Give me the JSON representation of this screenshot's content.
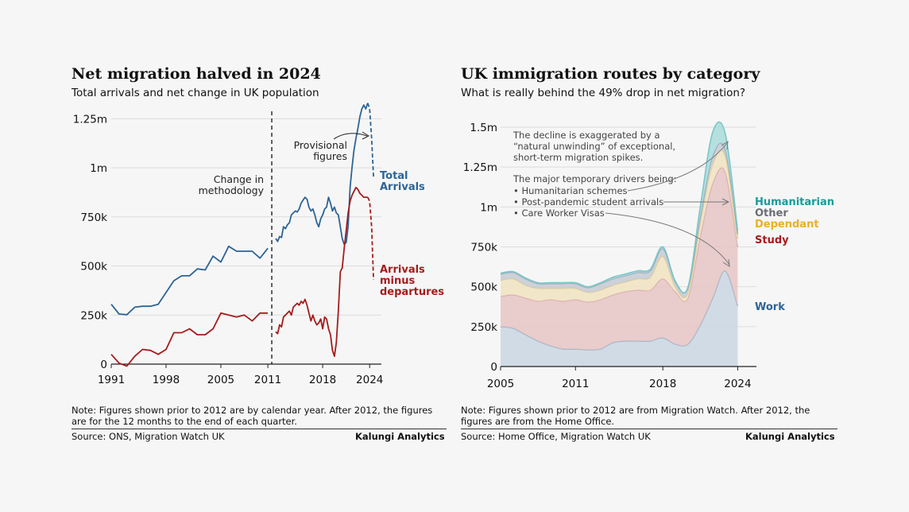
{
  "left_chart": {
    "title": "Net migration halved in 2024",
    "subtitle": "Total arrivals and net change in UK population",
    "note": "Note: Figures shown prior to 2012 are by calendar year. After 2012, the figures are for the 12 months to the end of each quarter.",
    "source": "Source: ONS, Migration Watch UK",
    "brand": "Kalungi Analytics",
    "annotations": {
      "methodology_line1": "Change in",
      "methodology_line2": "methodology",
      "provisional_line1": "Provisional",
      "provisional_line2": "figures"
    },
    "series_labels": {
      "arrivals_line1": "Total",
      "arrivals_line2": "Arrivals",
      "net_line1": "Arrivals",
      "net_line2": "minus",
      "net_line3": "departures"
    }
  },
  "right_chart": {
    "title": "UK immigration routes by category",
    "subtitle": "What is really behind the 49% drop in net migration?",
    "note": "Note: Figures shown prior to 2012 are from Migration Watch. After 2012, the figures are from the Home Office.",
    "source": "Source: Home Office, Migration Watch UK",
    "brand": "Kalungi Analytics",
    "annotations": {
      "line1": "The decline is exaggerated by a",
      "line2": "“natural unwinding” of exceptional,",
      "line3": "short-term migration spikes.",
      "line4": "The major temporary drivers being:",
      "line5": "• Humanitarian schemes",
      "line6": "• Post-pandemic student arrivals",
      "line7": "• Care Worker Visas"
    },
    "legend": {
      "humanitarian": "Humanitarian",
      "other": "Other",
      "dependant": "Dependant",
      "study": "Study",
      "work": "Work"
    }
  },
  "colors": {
    "arrivals": "#2d6496",
    "net": "#a51c1c",
    "work": "#c9d6e2",
    "study": "#e6c4c4",
    "dependant": "#f1e3c1",
    "other": "#c5cad2",
    "humanitarian": "#a9dcdc",
    "humanitarian_label": "#1a9a9a",
    "other_label": "#6a6e75",
    "dependant_label": "#e8b02a",
    "study_label": "#a51c1c",
    "work_label": "#2d6496"
  },
  "chart_data": [
    {
      "type": "line",
      "title": "Net migration halved in 2024",
      "xlabel": "",
      "ylabel": "",
      "xlim": [
        1991,
        2025.5
      ],
      "ylim": [
        0,
        1300000
      ],
      "xticks": [
        1991,
        1998,
        2005,
        2011,
        2018,
        2024
      ],
      "xtick_labels": [
        "1991",
        "1998",
        "2005",
        "2011",
        "2018",
        "2024"
      ],
      "yticks": [
        0,
        250000,
        500000,
        750000,
        1000000,
        1250000
      ],
      "ytick_labels": [
        "0",
        "250k",
        "500k",
        "750k",
        "1m",
        "1.25m"
      ],
      "methodology_break": 2011.5,
      "series": [
        {
          "name": "Total Arrivals (calendar year)",
          "x": [
            1991,
            1992,
            1993,
            1994,
            1995,
            1996,
            1997,
            1998,
            1999,
            2000,
            2001,
            2002,
            2003,
            2004,
            2005,
            2006,
            2007,
            2008,
            2009,
            2010,
            2011
          ],
          "y": [
            305000,
            255000,
            252000,
            290000,
            295000,
            295000,
            305000,
            365000,
            425000,
            450000,
            450000,
            485000,
            480000,
            550000,
            520000,
            600000,
            575000,
            575000,
            575000,
            540000,
            590000
          ]
        },
        {
          "name": "Total Arrivals (quarterly, 12-month)",
          "x": [
            2012,
            2012.25,
            2012.5,
            2012.75,
            2013,
            2013.25,
            2013.5,
            2013.75,
            2014,
            2014.25,
            2014.5,
            2014.75,
            2015,
            2015.25,
            2015.5,
            2015.75,
            2016,
            2016.25,
            2016.5,
            2016.75,
            2017,
            2017.25,
            2017.5,
            2017.75,
            2018,
            2018.25,
            2018.5,
            2018.75,
            2019,
            2019.25,
            2019.5,
            2019.75,
            2020,
            2020.25,
            2020.5,
            2020.75,
            2021,
            2021.25,
            2021.5,
            2021.75,
            2022,
            2022.25,
            2022.5,
            2022.75,
            2023,
            2023.25,
            2023.5,
            2023.75
          ],
          "y": [
            640000,
            625000,
            650000,
            645000,
            700000,
            690000,
            710000,
            720000,
            760000,
            770000,
            780000,
            775000,
            790000,
            820000,
            835000,
            850000,
            840000,
            800000,
            780000,
            790000,
            760000,
            720000,
            700000,
            740000,
            760000,
            790000,
            800000,
            850000,
            820000,
            780000,
            800000,
            770000,
            760000,
            700000,
            640000,
            610000,
            620000,
            700000,
            900000,
            1000000,
            1090000,
            1150000,
            1200000,
            1260000,
            1300000,
            1320000,
            1300000,
            1330000
          ]
        },
        {
          "name": "Total Arrivals (provisional)",
          "provisional": true,
          "x": [
            2023.75,
            2024,
            2024.25,
            2024.5
          ],
          "y": [
            1330000,
            1300000,
            1150000,
            950000
          ]
        },
        {
          "name": "Arrivals minus departures (calendar year)",
          "x": [
            1991,
            1992,
            1993,
            1994,
            1995,
            1996,
            1997,
            1998,
            1999,
            2000,
            2001,
            2002,
            2003,
            2004,
            2005,
            2006,
            2007,
            2008,
            2009,
            2010,
            2011
          ],
          "y": [
            50000,
            5000,
            -10000,
            40000,
            75000,
            70000,
            50000,
            75000,
            160000,
            160000,
            180000,
            150000,
            150000,
            180000,
            260000,
            250000,
            240000,
            250000,
            220000,
            260000,
            260000
          ]
        },
        {
          "name": "Arrivals minus departures (quarterly, 12-month)",
          "x": [
            2012,
            2012.25,
            2012.5,
            2012.75,
            2013,
            2013.25,
            2013.5,
            2013.75,
            2014,
            2014.25,
            2014.5,
            2014.75,
            2015,
            2015.25,
            2015.5,
            2015.75,
            2016,
            2016.25,
            2016.5,
            2016.75,
            2017,
            2017.25,
            2017.5,
            2017.75,
            2018,
            2018.25,
            2018.5,
            2018.75,
            2019,
            2019.25,
            2019.5,
            2019.75,
            2020,
            2020.25,
            2020.5,
            2020.75,
            2021,
            2021.25,
            2021.5,
            2021.75,
            2022,
            2022.25,
            2022.5,
            2022.75,
            2023,
            2023.25,
            2023.5,
            2023.75
          ],
          "y": [
            165000,
            155000,
            200000,
            190000,
            240000,
            250000,
            260000,
            270000,
            250000,
            290000,
            300000,
            310000,
            300000,
            320000,
            310000,
            330000,
            300000,
            260000,
            220000,
            250000,
            220000,
            200000,
            210000,
            230000,
            180000,
            240000,
            230000,
            180000,
            150000,
            70000,
            40000,
            110000,
            270000,
            470000,
            490000,
            590000,
            680000,
            770000,
            830000,
            860000,
            880000,
            900000,
            890000,
            870000,
            860000,
            850000,
            850000,
            850000
          ]
        },
        {
          "name": "Arrivals minus departures (provisional)",
          "provisional": true,
          "x": [
            2023.75,
            2024,
            2024.25,
            2024.5
          ],
          "y": [
            850000,
            830000,
            700000,
            430000
          ]
        }
      ]
    },
    {
      "type": "area",
      "stacked": true,
      "title": "UK immigration routes by category",
      "xlabel": "",
      "ylabel": "",
      "xlim": [
        2005,
        2025.5
      ],
      "ylim": [
        0,
        1500000
      ],
      "xticks": [
        2005,
        2011,
        2018,
        2024
      ],
      "xtick_labels": [
        "2005",
        "2011",
        "2018",
        "2024"
      ],
      "yticks": [
        0,
        250000,
        500000,
        750000,
        1000000,
        1250000,
        1500000
      ],
      "ytick_labels": [
        "0",
        "250k",
        "500k",
        "750k",
        "1m",
        "1.25m",
        "1.5m"
      ],
      "x": [
        2005,
        2006,
        2007,
        2008,
        2009,
        2010,
        2011,
        2012,
        2013,
        2014,
        2015,
        2016,
        2017,
        2018,
        2019,
        2020,
        2021,
        2022,
        2023,
        2024
      ],
      "series": [
        {
          "name": "Work",
          "values": [
            250000,
            240000,
            200000,
            160000,
            130000,
            110000,
            110000,
            105000,
            110000,
            150000,
            160000,
            160000,
            160000,
            180000,
            140000,
            140000,
            260000,
            430000,
            600000,
            380000
          ]
        },
        {
          "name": "Study",
          "values": [
            190000,
            210000,
            230000,
            250000,
            290000,
            300000,
            310000,
            300000,
            310000,
            300000,
            310000,
            320000,
            320000,
            370000,
            330000,
            290000,
            560000,
            720000,
            620000,
            370000
          ]
        },
        {
          "name": "Dependant",
          "values": [
            100000,
            100000,
            80000,
            80000,
            70000,
            80000,
            70000,
            60000,
            60000,
            60000,
            60000,
            70000,
            80000,
            140000,
            30000,
            30000,
            80000,
            120000,
            100000,
            50000
          ]
        },
        {
          "name": "Other",
          "values": [
            40000,
            40000,
            40000,
            30000,
            30000,
            30000,
            30000,
            30000,
            40000,
            40000,
            40000,
            40000,
            40000,
            50000,
            30000,
            30000,
            40000,
            50000,
            40000,
            30000
          ]
        },
        {
          "name": "Humanitarian",
          "values": [
            5000,
            5000,
            5000,
            5000,
            5000,
            5000,
            5000,
            5000,
            5000,
            10000,
            10000,
            10000,
            10000,
            10000,
            5000,
            5000,
            60000,
            150000,
            100000,
            20000
          ]
        }
      ]
    }
  ]
}
